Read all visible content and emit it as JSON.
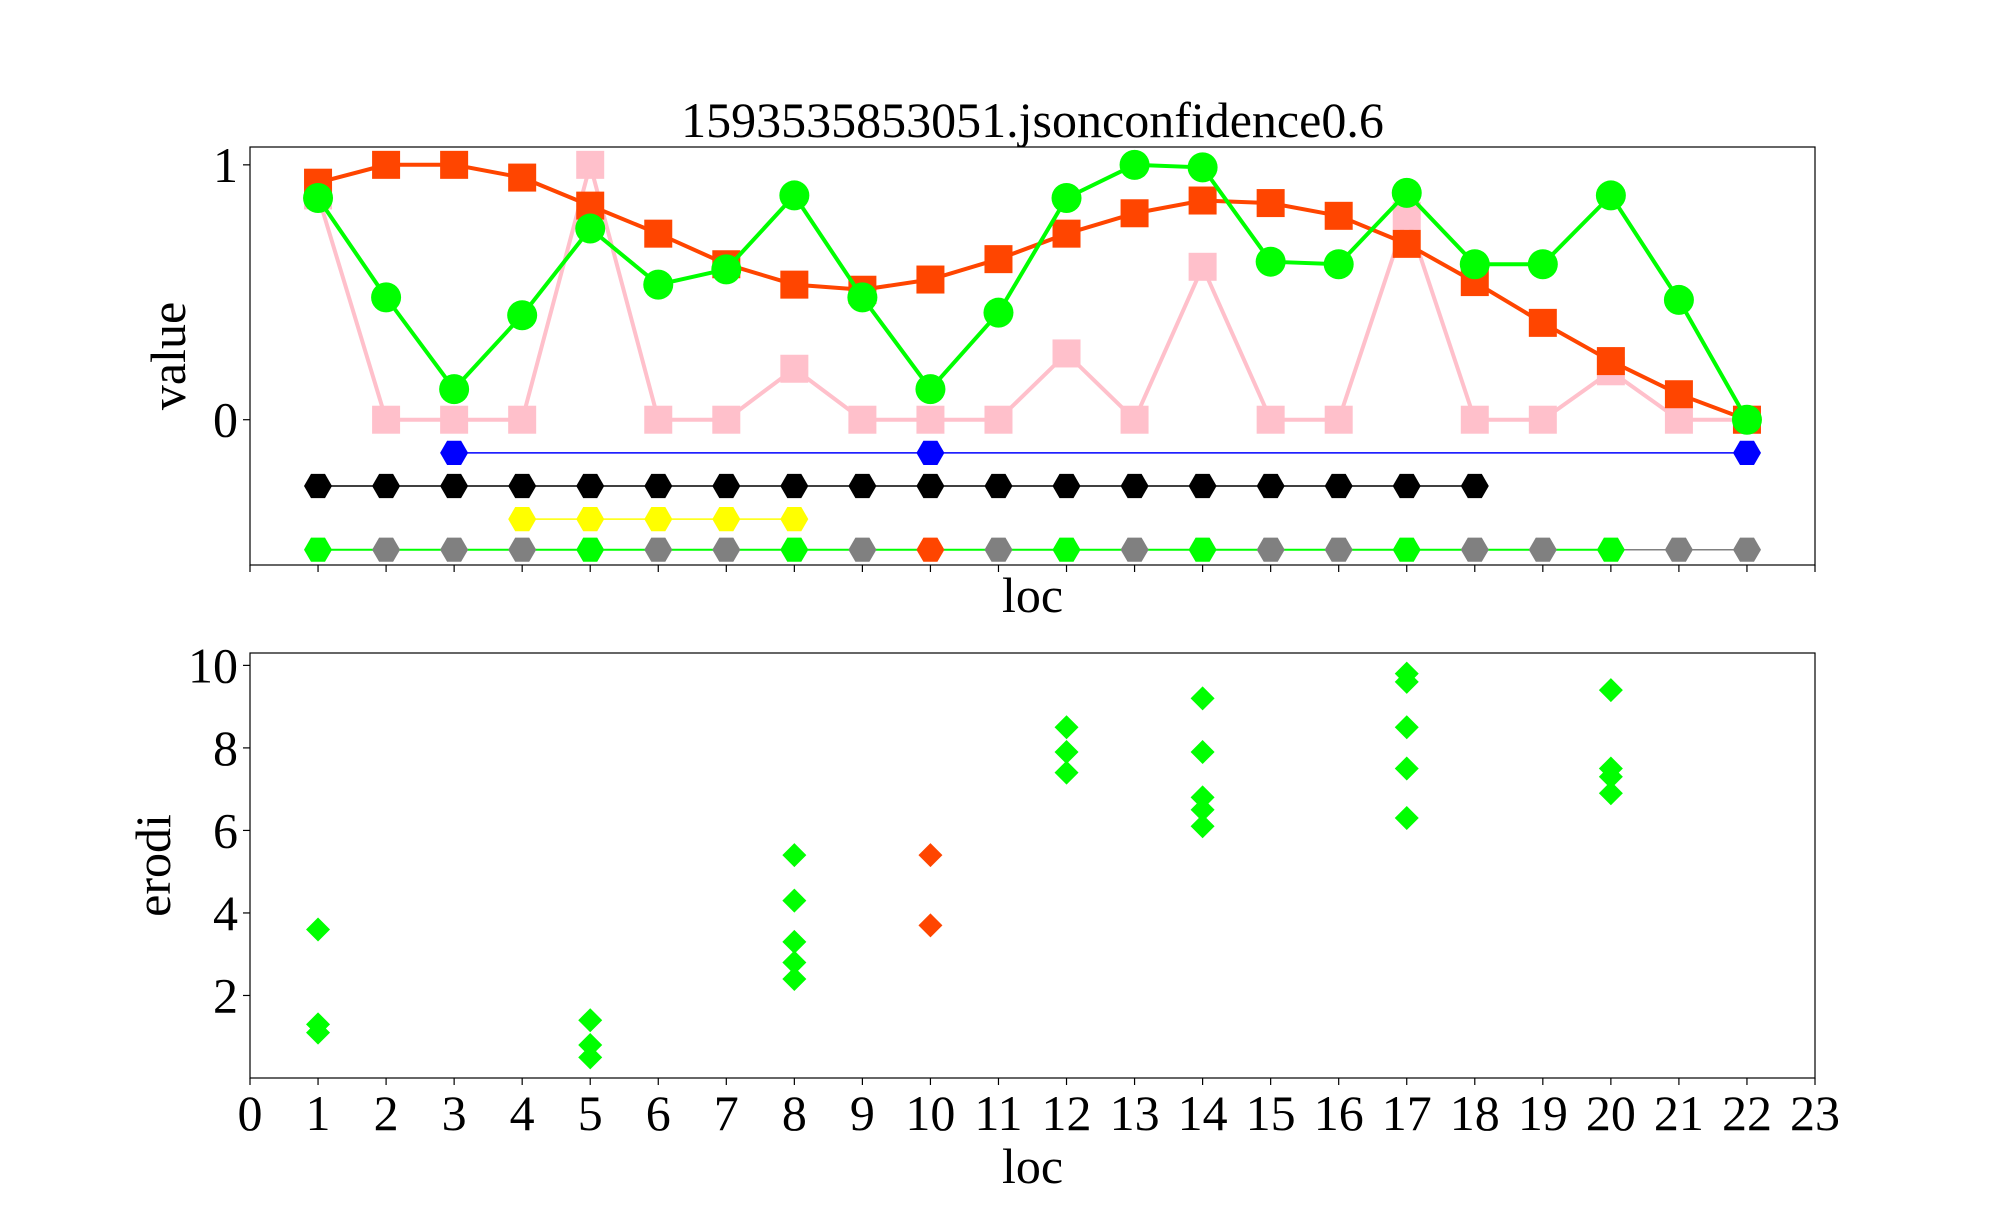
{
  "chart_data": [
    {
      "type": "line",
      "title": "1593535853051.jsonconfidence0.6",
      "xlabel": "loc",
      "ylabel": "value",
      "xlim": [
        0,
        23
      ],
      "ylim": [
        -0.57,
        1.07
      ],
      "yticks": [
        0,
        1
      ],
      "show_xtick_labels": false,
      "grid": false,
      "legend": "none",
      "series": [
        {
          "color": "#ffc0cb",
          "marker": "square",
          "x": [
            1,
            2,
            3,
            4,
            5,
            6,
            7,
            8,
            9,
            10,
            11,
            12,
            13,
            14,
            15,
            16,
            17,
            18,
            19,
            20,
            21,
            22
          ],
          "values": [
            0.88,
            0.0,
            0.0,
            0.0,
            1.0,
            0.0,
            0.0,
            0.2,
            0.0,
            0.0,
            0.0,
            0.26,
            0.0,
            0.6,
            0.0,
            0.0,
            0.8,
            0.0,
            0.0,
            0.19,
            0.0,
            0.0
          ]
        },
        {
          "color": "#ff4500",
          "marker": "square",
          "x": [
            1,
            2,
            3,
            4,
            5,
            6,
            7,
            8,
            9,
            10,
            11,
            12,
            13,
            14,
            15,
            16,
            17,
            18,
            19,
            20,
            21,
            22
          ],
          "values": [
            0.93,
            1.0,
            1.0,
            0.95,
            0.84,
            0.73,
            0.61,
            0.53,
            0.51,
            0.55,
            0.63,
            0.73,
            0.81,
            0.86,
            0.85,
            0.8,
            0.69,
            0.54,
            0.38,
            0.23,
            0.1,
            0.0
          ]
        },
        {
          "color": "#00ff00",
          "marker": "circle",
          "x": [
            1,
            2,
            3,
            4,
            5,
            6,
            7,
            8,
            9,
            10,
            11,
            12,
            13,
            14,
            15,
            16,
            17,
            18,
            19,
            20,
            21,
            22
          ],
          "values": [
            0.87,
            0.48,
            0.12,
            0.41,
            0.75,
            0.53,
            0.59,
            0.88,
            0.48,
            0.12,
            0.42,
            0.87,
            1.0,
            0.99,
            0.62,
            0.61,
            0.89,
            0.61,
            0.61,
            0.88,
            0.47,
            0.0
          ]
        }
      ],
      "tracks": [
        {
          "color": "#0000ff",
          "y": -0.13,
          "points": [
            {
              "x": 3,
              "color": "#0000ff"
            },
            {
              "x": 10,
              "color": "#0000ff"
            },
            {
              "x": 22,
              "color": "#0000ff"
            }
          ]
        },
        {
          "color": "#000000",
          "y": -0.26,
          "points": [
            {
              "x": 1,
              "color": "#000000"
            },
            {
              "x": 2,
              "color": "#000000"
            },
            {
              "x": 3,
              "color": "#000000"
            },
            {
              "x": 4,
              "color": "#000000"
            },
            {
              "x": 5,
              "color": "#000000"
            },
            {
              "x": 6,
              "color": "#000000"
            },
            {
              "x": 7,
              "color": "#000000"
            },
            {
              "x": 8,
              "color": "#000000"
            },
            {
              "x": 9,
              "color": "#000000"
            },
            {
              "x": 10,
              "color": "#000000"
            },
            {
              "x": 11,
              "color": "#000000"
            },
            {
              "x": 12,
              "color": "#000000"
            },
            {
              "x": 13,
              "color": "#000000"
            },
            {
              "x": 14,
              "color": "#000000"
            },
            {
              "x": 15,
              "color": "#000000"
            },
            {
              "x": 16,
              "color": "#000000"
            },
            {
              "x": 17,
              "color": "#000000"
            },
            {
              "x": 18,
              "color": "#000000"
            }
          ]
        },
        {
          "color": "#ffff00",
          "y": -0.39,
          "points": [
            {
              "x": 4,
              "color": "#ffff00"
            },
            {
              "x": 5,
              "color": "#ffff00"
            },
            {
              "x": 6,
              "color": "#ffff00"
            },
            {
              "x": 7,
              "color": "#ffff00"
            },
            {
              "x": 8,
              "color": "#ffff00"
            }
          ]
        },
        {
          "color": "#808080",
          "y": -0.51,
          "points": [
            {
              "x": 1,
              "color": "#00ff00"
            },
            {
              "x": 2,
              "color": "#808080"
            },
            {
              "x": 3,
              "color": "#808080"
            },
            {
              "x": 4,
              "color": "#808080"
            },
            {
              "x": 5,
              "color": "#00ff00"
            },
            {
              "x": 6,
              "color": "#808080"
            },
            {
              "x": 7,
              "color": "#808080"
            },
            {
              "x": 8,
              "color": "#00ff00"
            },
            {
              "x": 9,
              "color": "#808080"
            },
            {
              "x": 10,
              "color": "#ff4500"
            },
            {
              "x": 11,
              "color": "#808080"
            },
            {
              "x": 12,
              "color": "#00ff00"
            },
            {
              "x": 13,
              "color": "#808080"
            },
            {
              "x": 14,
              "color": "#00ff00"
            },
            {
              "x": 15,
              "color": "#808080"
            },
            {
              "x": 16,
              "color": "#808080"
            },
            {
              "x": 17,
              "color": "#00ff00"
            },
            {
              "x": 18,
              "color": "#808080"
            },
            {
              "x": 19,
              "color": "#808080"
            },
            {
              "x": 20,
              "color": "#00ff00"
            },
            {
              "x": 21,
              "color": "#808080"
            },
            {
              "x": 22,
              "color": "#808080"
            }
          ],
          "green_segments": [
            [
              1,
              20
            ]
          ]
        }
      ]
    },
    {
      "type": "scatter",
      "xlabel": "loc",
      "ylabel": "erodi",
      "xlim": [
        0,
        23
      ],
      "ylim": [
        0.0,
        10.3
      ],
      "xticks": [
        0,
        1,
        2,
        3,
        4,
        5,
        6,
        7,
        8,
        9,
        10,
        11,
        12,
        13,
        14,
        15,
        16,
        17,
        18,
        19,
        20,
        21,
        22,
        23
      ],
      "yticks": [
        2,
        4,
        6,
        8,
        10
      ],
      "marker": "diamond",
      "grid": false,
      "legend": "none",
      "points": [
        {
          "x": 1,
          "y": 3.6,
          "color": "#00ff00"
        },
        {
          "x": 1,
          "y": 1.3,
          "color": "#00ff00"
        },
        {
          "x": 1,
          "y": 1.1,
          "color": "#00ff00"
        },
        {
          "x": 5,
          "y": 1.4,
          "color": "#00ff00"
        },
        {
          "x": 5,
          "y": 0.8,
          "color": "#00ff00"
        },
        {
          "x": 5,
          "y": 0.5,
          "color": "#00ff00"
        },
        {
          "x": 8,
          "y": 5.4,
          "color": "#00ff00"
        },
        {
          "x": 8,
          "y": 4.3,
          "color": "#00ff00"
        },
        {
          "x": 8,
          "y": 3.3,
          "color": "#00ff00"
        },
        {
          "x": 8,
          "y": 2.8,
          "color": "#00ff00"
        },
        {
          "x": 8,
          "y": 2.4,
          "color": "#00ff00"
        },
        {
          "x": 10,
          "y": 5.4,
          "color": "#ff4500"
        },
        {
          "x": 10,
          "y": 3.7,
          "color": "#ff4500"
        },
        {
          "x": 12,
          "y": 8.5,
          "color": "#00ff00"
        },
        {
          "x": 12,
          "y": 7.9,
          "color": "#00ff00"
        },
        {
          "x": 12,
          "y": 7.4,
          "color": "#00ff00"
        },
        {
          "x": 14,
          "y": 9.2,
          "color": "#00ff00"
        },
        {
          "x": 14,
          "y": 7.9,
          "color": "#00ff00"
        },
        {
          "x": 14,
          "y": 6.8,
          "color": "#00ff00"
        },
        {
          "x": 14,
          "y": 6.5,
          "color": "#00ff00"
        },
        {
          "x": 14,
          "y": 6.1,
          "color": "#00ff00"
        },
        {
          "x": 17,
          "y": 9.8,
          "color": "#00ff00"
        },
        {
          "x": 17,
          "y": 9.6,
          "color": "#00ff00"
        },
        {
          "x": 17,
          "y": 8.5,
          "color": "#00ff00"
        },
        {
          "x": 17,
          "y": 7.5,
          "color": "#00ff00"
        },
        {
          "x": 17,
          "y": 6.3,
          "color": "#00ff00"
        },
        {
          "x": 20,
          "y": 9.4,
          "color": "#00ff00"
        },
        {
          "x": 20,
          "y": 7.5,
          "color": "#00ff00"
        },
        {
          "x": 20,
          "y": 7.3,
          "color": "#00ff00"
        },
        {
          "x": 20,
          "y": 6.9,
          "color": "#00ff00"
        }
      ]
    }
  ]
}
